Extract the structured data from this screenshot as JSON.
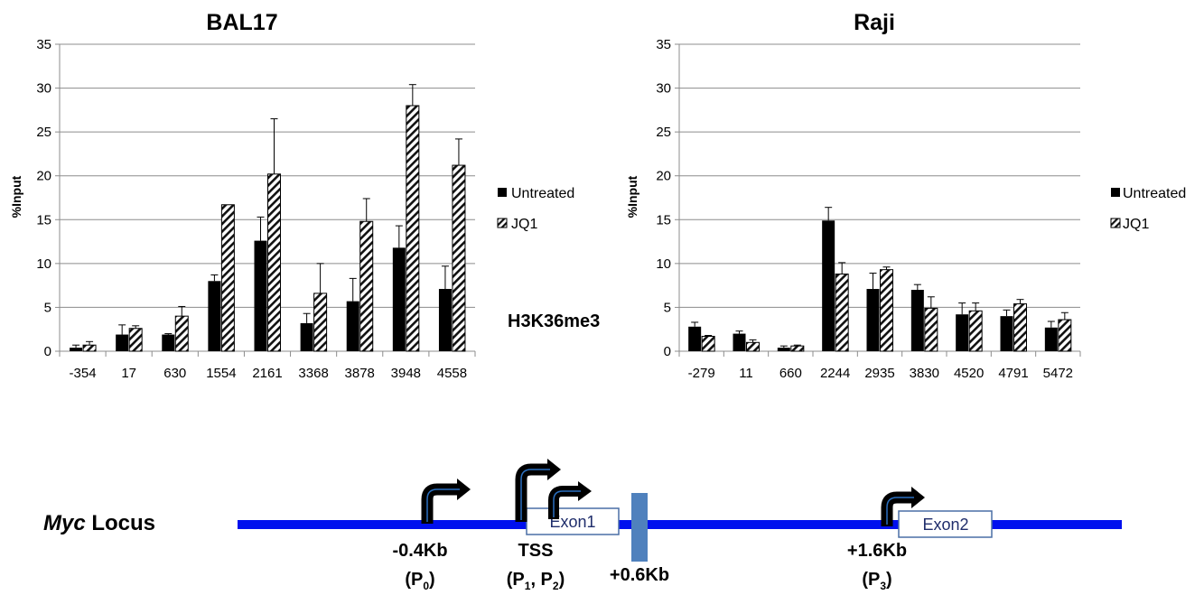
{
  "chart_data": [
    {
      "type": "bar",
      "title": "BAL17",
      "ylabel": "%Input",
      "ylim": [
        0,
        35
      ],
      "yticks": [
        0,
        5,
        10,
        15,
        20,
        25,
        30,
        35
      ],
      "categories": [
        "-354",
        "17",
        "630",
        "1554",
        "2161",
        "3368",
        "3878",
        "3948",
        "4558"
      ],
      "series": [
        {
          "name": "Untreated",
          "values": [
            0.4,
            1.9,
            1.9,
            8.0,
            12.6,
            3.2,
            5.7,
            11.8,
            7.1
          ],
          "errors": [
            0.3,
            1.1,
            0.1,
            0.7,
            2.7,
            1.1,
            2.6,
            2.5,
            2.6
          ]
        },
        {
          "name": "JQ1",
          "values": [
            0.7,
            2.6,
            4.0,
            16.7,
            20.2,
            6.6,
            14.8,
            28.0,
            21.2
          ],
          "errors": [
            0.4,
            0.3,
            1.1,
            0.0,
            6.3,
            3.4,
            2.6,
            2.4,
            3.0
          ]
        }
      ]
    },
    {
      "type": "bar",
      "title": "Raji",
      "ylabel": "%Input",
      "ylim": [
        0,
        35
      ],
      "yticks": [
        0,
        5,
        10,
        15,
        20,
        25,
        30,
        35
      ],
      "categories": [
        "-279",
        "11",
        "660",
        "2244",
        "2935",
        "3830",
        "4520",
        "4791",
        "5472"
      ],
      "series": [
        {
          "name": "Untreated",
          "values": [
            2.8,
            2.0,
            0.4,
            14.9,
            7.1,
            7.0,
            4.2,
            4.0,
            2.7
          ],
          "errors": [
            0.5,
            0.3,
            0.2,
            1.5,
            1.8,
            0.6,
            1.3,
            0.7,
            0.7
          ]
        },
        {
          "name": "JQ1",
          "values": [
            1.7,
            1.0,
            0.6,
            8.8,
            9.3,
            4.9,
            4.6,
            5.4,
            3.6
          ],
          "errors": [
            0.1,
            0.3,
            0.1,
            1.3,
            0.3,
            1.3,
            0.9,
            0.5,
            0.8
          ]
        }
      ]
    }
  ],
  "mark_label": "H3K36me3",
  "locus": {
    "label_italic": "Myc",
    "label_rest": " Locus",
    "exon1": "Exon1",
    "exon2": "Exon2",
    "pos_p0": "-0.4Kb",
    "p0_main": "(P",
    "p0_sub": "0",
    "p0_end": ")",
    "tss": "TSS",
    "tss_main": "(P",
    "tss_sub1": "1",
    "tss_mid": ", P",
    "tss_sub2": "2",
    "tss_end": ")",
    "pos_mid": "+0.6Kb",
    "pos_p3": "+1.6Kb",
    "p3_main": "(P",
    "p3_sub": "3",
    "p3_end": ")",
    "tss_color": "#e8141b",
    "line_color": "#0010ee",
    "block_color": "#4f81bd",
    "exon_border": "#4a6fa5"
  }
}
